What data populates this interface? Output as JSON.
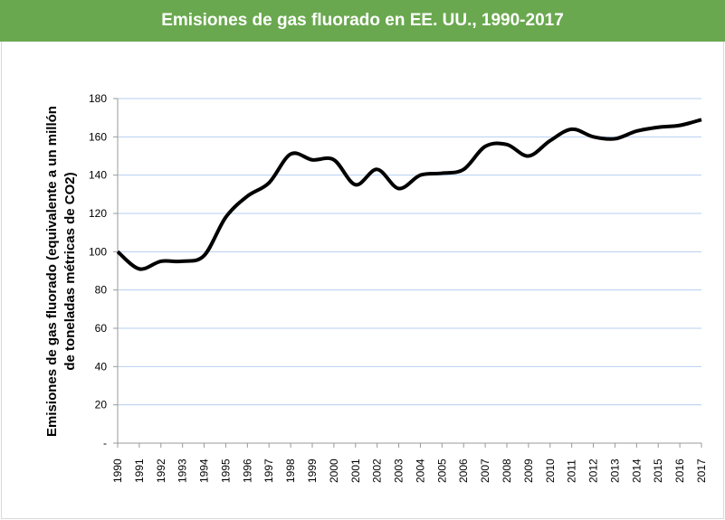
{
  "chart_data": {
    "type": "line",
    "title": "Emisiones de gas fluorado en EE. UU., 1990-2017",
    "xlabel": "",
    "ylabel_lines": [
      "Emisiones de gas fluorado (equivalente a un millón",
      "de toneladas métricas de CO2)"
    ],
    "ylim": [
      0,
      180
    ],
    "yticks": [
      0,
      20,
      40,
      60,
      80,
      100,
      120,
      140,
      160,
      180
    ],
    "ytick_labels": [
      "-",
      "20",
      "40",
      "60",
      "80",
      "100",
      "120",
      "140",
      "160",
      "180"
    ],
    "grid": true,
    "smooth": true,
    "line_color": "#000000",
    "grid_color": "#b4cff0",
    "title_bar_color": "#6aa84f",
    "x": [
      "1990",
      "1991",
      "1992",
      "1993",
      "1994",
      "1995",
      "1996",
      "1997",
      "1998",
      "1999",
      "2000",
      "2001",
      "2002",
      "2003",
      "2004",
      "2005",
      "2006",
      "2007",
      "2008",
      "2009",
      "2010",
      "2011",
      "2012",
      "2013",
      "2014",
      "2015",
      "2016",
      "2017"
    ],
    "values": [
      100,
      91,
      95,
      95,
      98,
      118,
      129,
      136,
      151,
      148,
      148,
      135,
      143,
      133,
      140,
      141,
      143,
      155,
      156,
      150,
      158,
      164,
      160,
      159,
      163,
      165,
      166,
      169
    ]
  }
}
